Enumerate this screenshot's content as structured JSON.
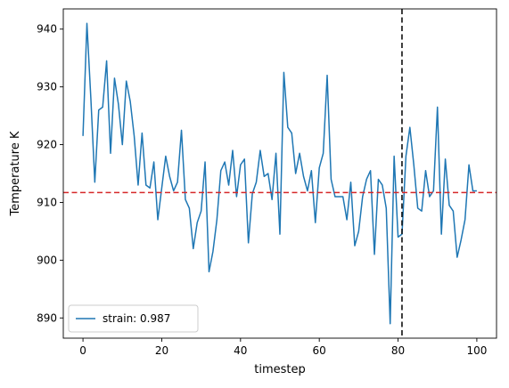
{
  "chart_data": {
    "type": "line",
    "title": "",
    "xlabel": "timestep",
    "ylabel": "Temperature K",
    "xlim": [
      -5,
      105
    ],
    "ylim": [
      886.5,
      943.5
    ],
    "xticks": [
      0,
      20,
      40,
      60,
      80,
      100
    ],
    "yticks": [
      890,
      900,
      910,
      920,
      930,
      940
    ],
    "grid": false,
    "legend_position": "lower left",
    "series": [
      {
        "name": "strain: 0.987",
        "color": "#1f77b4",
        "x": [
          0,
          1,
          2,
          3,
          4,
          5,
          6,
          7,
          8,
          9,
          10,
          11,
          12,
          13,
          14,
          15,
          16,
          17,
          18,
          19,
          20,
          21,
          22,
          23,
          24,
          25,
          26,
          27,
          28,
          29,
          30,
          31,
          32,
          33,
          34,
          35,
          36,
          37,
          38,
          39,
          40,
          41,
          42,
          43,
          44,
          45,
          46,
          47,
          48,
          49,
          50,
          51,
          52,
          53,
          54,
          55,
          56,
          57,
          58,
          59,
          60,
          61,
          62,
          63,
          64,
          65,
          66,
          67,
          68,
          69,
          70,
          71,
          72,
          73,
          74,
          75,
          76,
          77,
          78,
          79,
          80,
          81,
          82,
          83,
          84,
          85,
          86,
          87,
          88,
          89,
          90,
          91,
          92,
          93,
          94,
          95,
          96,
          97,
          98,
          99,
          100
        ],
        "y": [
          921.5,
          941.0,
          928.0,
          913.5,
          926.0,
          926.5,
          934.5,
          918.5,
          931.5,
          927.0,
          920.0,
          931.0,
          927.5,
          921.5,
          913.0,
          922.0,
          913.0,
          912.5,
          917.0,
          907.0,
          912.5,
          918.0,
          914.5,
          912.0,
          913.5,
          922.5,
          910.5,
          909.0,
          902.0,
          906.5,
          908.5,
          917.0,
          898.0,
          901.5,
          907.0,
          915.5,
          917.0,
          913.0,
          919.0,
          911.0,
          916.5,
          917.5,
          903.0,
          911.5,
          913.5,
          919.0,
          914.5,
          915.0,
          910.5,
          918.5,
          904.5,
          932.5,
          923.0,
          922.0,
          915.0,
          918.5,
          914.5,
          912.0,
          915.5,
          906.5,
          916.0,
          918.5,
          932.0,
          914.0,
          911.0,
          911.0,
          911.0,
          907.0,
          913.5,
          902.5,
          905.0,
          911.0,
          914.0,
          915.5,
          901.0,
          914.0,
          913.0,
          909.0,
          889.0,
          918.0,
          904.0,
          904.5,
          918.0,
          923.0,
          916.5,
          909.0,
          908.5,
          915.5,
          911.0,
          912.0,
          926.5,
          904.5,
          917.5,
          909.5,
          908.5,
          900.5,
          903.5,
          907.0,
          916.5,
          912.0,
          912.0
        ]
      }
    ],
    "reference_lines": [
      {
        "orientation": "horizontal",
        "value": 911.7,
        "color": "#d62728",
        "style": "dashed"
      },
      {
        "orientation": "vertical",
        "value": 81,
        "color": "#000000",
        "style": "dashed"
      }
    ]
  }
}
